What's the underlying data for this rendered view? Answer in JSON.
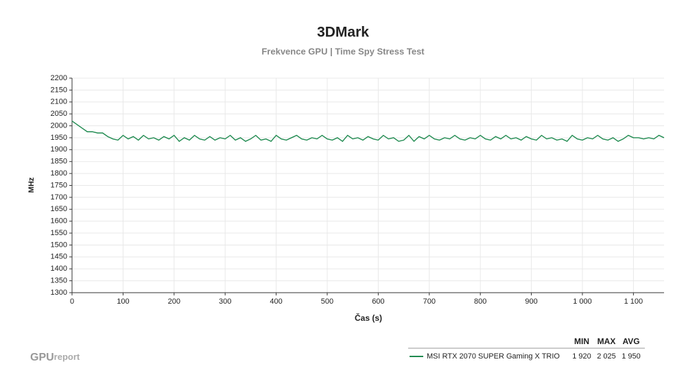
{
  "chart_data": {
    "type": "line",
    "title": "3DMark",
    "subtitle": "Frekvence GPU | Time Spy Stress Test",
    "x_label": "Čas (s)",
    "y_label": "MHz",
    "x": [
      0,
      10,
      20,
      30,
      40,
      50,
      60,
      70,
      80,
      90,
      100,
      110,
      120,
      130,
      140,
      150,
      160,
      170,
      180,
      190,
      200,
      210,
      220,
      230,
      240,
      250,
      260,
      270,
      280,
      290,
      300,
      310,
      320,
      330,
      340,
      350,
      360,
      370,
      380,
      390,
      400,
      410,
      420,
      430,
      440,
      450,
      460,
      470,
      480,
      490,
      500,
      510,
      520,
      530,
      540,
      550,
      560,
      570,
      580,
      590,
      600,
      610,
      620,
      630,
      640,
      650,
      660,
      670,
      680,
      690,
      700,
      710,
      720,
      730,
      740,
      750,
      760,
      770,
      780,
      790,
      800,
      810,
      820,
      830,
      840,
      850,
      860,
      870,
      880,
      890,
      900,
      910,
      920,
      930,
      940,
      950,
      960,
      970,
      980,
      990,
      1000,
      1010,
      1020,
      1030,
      1040,
      1050,
      1060,
      1070,
      1080,
      1090,
      1100,
      1110,
      1120,
      1130,
      1140,
      1150,
      1160
    ],
    "series": [
      {
        "name": "MSI RTX 2070 SUPER Gaming X TRIO",
        "color": "#1e8a4f",
        "values": [
          2020,
          2005,
          1990,
          1975,
          1975,
          1970,
          1970,
          1955,
          1945,
          1940,
          1960,
          1945,
          1955,
          1940,
          1960,
          1945,
          1950,
          1940,
          1955,
          1945,
          1960,
          1935,
          1950,
          1940,
          1960,
          1945,
          1940,
          1955,
          1940,
          1950,
          1945,
          1960,
          1940,
          1950,
          1935,
          1945,
          1960,
          1940,
          1945,
          1935,
          1960,
          1945,
          1940,
          1950,
          1960,
          1945,
          1940,
          1950,
          1945,
          1960,
          1945,
          1940,
          1950,
          1935,
          1960,
          1945,
          1950,
          1940,
          1955,
          1945,
          1940,
          1960,
          1945,
          1950,
          1935,
          1940,
          1960,
          1935,
          1955,
          1945,
          1960,
          1945,
          1940,
          1950,
          1945,
          1960,
          1945,
          1940,
          1950,
          1945,
          1960,
          1945,
          1940,
          1955,
          1945,
          1960,
          1945,
          1950,
          1940,
          1955,
          1945,
          1940,
          1960,
          1945,
          1950,
          1940,
          1945,
          1935,
          1960,
          1945,
          1940,
          1950,
          1945,
          1960,
          1945,
          1940,
          1950,
          1935,
          1945,
          1960,
          1950,
          1950,
          1945,
          1950,
          1945,
          1960,
          1950
        ]
      }
    ],
    "xlim": [
      0,
      1160
    ],
    "xticks": [
      0,
      100,
      200,
      300,
      400,
      500,
      600,
      700,
      800,
      900,
      {
        "value": 1000,
        "label": "1 000"
      },
      {
        "value": 1100,
        "label": "1 100"
      }
    ],
    "ylim": [
      1300,
      2200
    ],
    "yticks": [
      1300,
      1350,
      1400,
      1450,
      1500,
      1550,
      1600,
      1650,
      1700,
      1750,
      1800,
      1850,
      1900,
      1950,
      2000,
      2050,
      2100,
      2150,
      2200
    ],
    "grid": true,
    "stats": {
      "headers": [
        "MIN",
        "MAX",
        "AVG"
      ],
      "values": [
        1920,
        2025,
        1950
      ],
      "value_labels": [
        "1 920",
        "2 025",
        "1 950"
      ]
    }
  },
  "logo": {
    "bold": "GPU",
    "light": "report"
  }
}
